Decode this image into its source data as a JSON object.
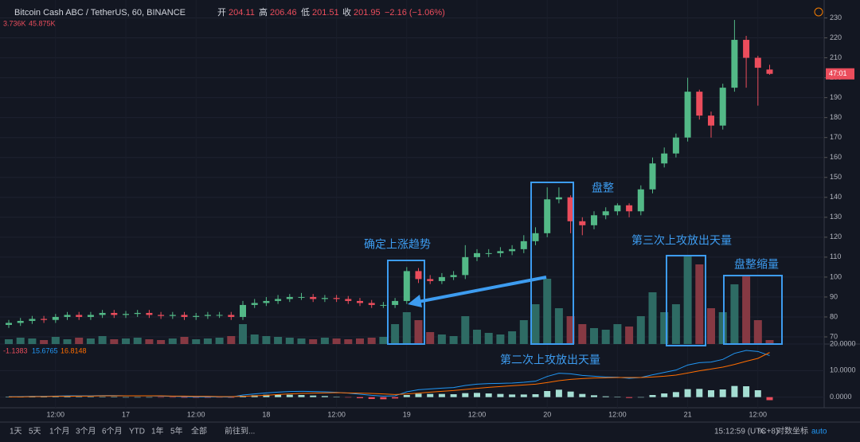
{
  "header": {
    "symbol": "Bitcoin Cash ABC / TetherUS, 60, BINANCE",
    "open_label": "开",
    "open": 204.11,
    "high_label": "高",
    "high": 206.46,
    "low_label": "低",
    "low": 201.51,
    "close_label": "收",
    "close": 201.95,
    "change": "−2.16 (−1.06%)",
    "vol_a": "3.736K",
    "vol_b": "45.875K",
    "price_tag": "47:01"
  },
  "chart_data": {
    "type": "candlestick",
    "categories": [
      null,
      null,
      null,
      null,
      "12:00",
      null,
      null,
      null,
      null,
      null,
      "17",
      null,
      null,
      null,
      null,
      null,
      "12:00",
      null,
      null,
      null,
      null,
      null,
      "18",
      null,
      null,
      null,
      null,
      null,
      "12:00",
      null,
      null,
      null,
      null,
      null,
      "19",
      null,
      null,
      null,
      null,
      null,
      "12:00",
      null,
      null,
      null,
      null,
      null,
      "20",
      null,
      null,
      null,
      null,
      null,
      "12:00",
      null,
      null,
      null,
      null,
      null,
      "21",
      null,
      null,
      null,
      null,
      null,
      "12:00",
      null
    ],
    "open": [
      76,
      77,
      78,
      79,
      78.5,
      80,
      81,
      80,
      81,
      82,
      81,
      81.5,
      82,
      81,
      80.5,
      81,
      80,
      80.5,
      81,
      81,
      80,
      86,
      87,
      88,
      89,
      90,
      90,
      89,
      89.5,
      89,
      88,
      87,
      86,
      86,
      88,
      103,
      99,
      98,
      100,
      101,
      110,
      112,
      112,
      113,
      114,
      118,
      122,
      139,
      140,
      128,
      126,
      131,
      133,
      136,
      133,
      144,
      157,
      162,
      170,
      193,
      181,
      176,
      195,
      219,
      210,
      204.11
    ],
    "high": [
      78.5,
      79.5,
      80.5,
      80.5,
      81.5,
      82.5,
      82.5,
      82.5,
      83.5,
      83.5,
      83,
      83.5,
      83.5,
      82.5,
      82.5,
      82.5,
      82,
      82.5,
      82.5,
      82.5,
      88,
      89,
      90,
      91,
      91.5,
      92,
      91.5,
      91,
      91,
      90.5,
      89.5,
      88.5,
      87.5,
      89.5,
      105,
      104.5,
      101,
      102,
      103,
      116,
      114,
      114,
      115,
      116,
      121,
      125,
      145,
      145,
      141,
      130,
      133,
      135,
      137,
      137,
      146,
      160,
      165,
      172,
      200,
      194,
      183,
      197,
      229,
      221,
      211,
      206.46
    ],
    "low": [
      74.5,
      75.5,
      76.5,
      77,
      77,
      78.5,
      78.5,
      78.5,
      79.5,
      79.5,
      79.5,
      80,
      79.5,
      79,
      79,
      78.5,
      78.5,
      79,
      79.5,
      78.5,
      78.5,
      84.5,
      85.5,
      86.5,
      87.5,
      88.5,
      87.5,
      87.5,
      87.5,
      86.5,
      85.5,
      84.5,
      84.5,
      84.5,
      86.5,
      97,
      96.5,
      96.5,
      98.5,
      99,
      108,
      110,
      110,
      111,
      112,
      116,
      120,
      137,
      122,
      121,
      124,
      129,
      131,
      130,
      131,
      142,
      155,
      160,
      168,
      179,
      170,
      174,
      193,
      195,
      186,
      201.51
    ],
    "close": [
      77,
      78,
      79,
      78.5,
      80,
      81,
      80,
      81,
      82,
      81,
      81.5,
      82,
      81,
      80.5,
      81,
      80,
      80.5,
      81,
      81,
      80,
      86,
      87,
      88,
      89,
      90,
      90,
      89,
      89.5,
      89,
      88,
      87,
      86,
      86,
      88,
      103,
      99,
      98,
      100,
      101,
      110,
      112,
      112,
      113,
      114,
      118,
      122,
      139,
      140,
      128,
      126,
      131,
      133,
      136,
      133,
      144,
      157,
      162,
      170,
      193,
      181,
      176,
      195,
      219,
      210,
      205,
      201.95
    ],
    "volume": [
      6,
      8,
      7,
      5,
      9,
      6,
      8,
      7,
      10,
      6,
      7,
      8,
      6,
      5,
      7,
      9,
      6,
      7,
      8,
      10,
      25,
      12,
      10,
      9,
      8,
      7,
      6,
      8,
      7,
      6,
      7,
      8,
      9,
      25,
      40,
      30,
      15,
      12,
      10,
      35,
      18,
      14,
      12,
      16,
      30,
      50,
      82,
      45,
      35,
      25,
      20,
      18,
      25,
      22,
      35,
      65,
      40,
      50,
      110,
      100,
      45,
      40,
      75,
      85,
      30,
      5
    ],
    "up_color": "#53b987",
    "down_color": "#eb4d5c",
    "volume_up_color": "#2e6b64",
    "volume_down_color": "#863943",
    "ylim": [
      66.4,
      235
    ],
    "yticks": [
      70,
      80,
      90,
      100,
      110,
      120,
      130,
      140,
      150,
      160,
      170,
      180,
      190,
      200,
      210,
      220,
      230
    ],
    "macd": {
      "macd": [
        0.2,
        0.2,
        0.3,
        0.3,
        0.4,
        0.5,
        0.5,
        0.5,
        0.6,
        0.6,
        0.5,
        0.5,
        0.5,
        0.4,
        0.3,
        0.2,
        0.1,
        0.1,
        0.1,
        0.0,
        0.8,
        1.2,
        1.6,
        1.9,
        2.1,
        2.2,
        2.1,
        2.0,
        1.8,
        1.5,
        1.1,
        0.7,
        0.4,
        0.5,
        2.0,
        2.8,
        3.1,
        3.4,
        3.6,
        4.4,
        4.9,
        5.1,
        5.2,
        5.3,
        5.6,
        6.0,
        7.8,
        9.0,
        8.8,
        8.2,
        7.9,
        7.6,
        7.5,
        7.1,
        7.4,
        8.4,
        9.3,
        10.2,
        12.1,
        13.0,
        13.2,
        14.2,
        16.5,
        17.6,
        17.2,
        15.6765
      ],
      "signal": [
        0.1,
        0.1,
        0.2,
        0.2,
        0.3,
        0.3,
        0.4,
        0.4,
        0.5,
        0.5,
        0.5,
        0.5,
        0.5,
        0.5,
        0.4,
        0.4,
        0.3,
        0.3,
        0.2,
        0.2,
        0.3,
        0.5,
        0.7,
        1.0,
        1.2,
        1.4,
        1.5,
        1.6,
        1.7,
        1.6,
        1.5,
        1.4,
        1.2,
        1.0,
        1.2,
        1.5,
        1.9,
        2.2,
        2.5,
        2.9,
        3.3,
        3.7,
        4.0,
        4.3,
        4.6,
        4.9,
        5.5,
        6.2,
        6.7,
        7.0,
        7.2,
        7.3,
        7.4,
        7.4,
        7.4,
        7.6,
        7.9,
        8.3,
        9.1,
        9.9,
        10.6,
        11.3,
        12.3,
        13.5,
        14.6,
        16.8148
      ],
      "hist": [
        0.1,
        0.1,
        0.1,
        0.1,
        0.1,
        0.2,
        0.1,
        0.1,
        0.1,
        0.1,
        0,
        0,
        0,
        -0.1,
        -0.1,
        -0.2,
        -0.2,
        -0.2,
        -0.1,
        -0.2,
        0.5,
        0.7,
        0.9,
        0.9,
        0.9,
        0.8,
        0.6,
        0.4,
        0.1,
        -0.1,
        -0.4,
        -0.7,
        -0.8,
        -0.5,
        0.8,
        1.3,
        1.2,
        1.2,
        1.1,
        1.5,
        1.6,
        1.4,
        1.2,
        1.0,
        1.0,
        1.1,
        2.3,
        2.8,
        2.1,
        1.2,
        0.7,
        0.3,
        0.1,
        -0.3,
        0,
        0.8,
        1.4,
        1.9,
        3.0,
        3.1,
        2.6,
        2.9,
        4.2,
        4.1,
        2.6,
        -1.1383
      ],
      "macd_color": "#2196f3",
      "signal_color": "#ff6d00",
      "hist_up_color": "#a5ded3",
      "hist_down_color": "#eb4d5c",
      "ylim": [
        -4,
        20
      ],
      "yticks": [
        {
          "value": 0,
          "label": "0.0000"
        },
        {
          "value": 10,
          "label": "10.0000"
        },
        {
          "value": 20,
          "label": "20.0000"
        }
      ]
    },
    "annotations": [
      "确定上涨趋势",
      "盘整",
      "第三次上攻放出天量",
      "盘整缩量",
      "第二次上攻放出天量"
    ]
  },
  "toolbar": {
    "ranges": [
      "1天",
      "5天",
      "1个月",
      "3个月",
      "6个月",
      "YTD",
      "1年",
      "5年",
      "全部"
    ],
    "goto": "前往到...",
    "time": "15:12:59 (UTC+8)",
    "percent": "%",
    "log": "对数坐标",
    "auto": "auto"
  }
}
